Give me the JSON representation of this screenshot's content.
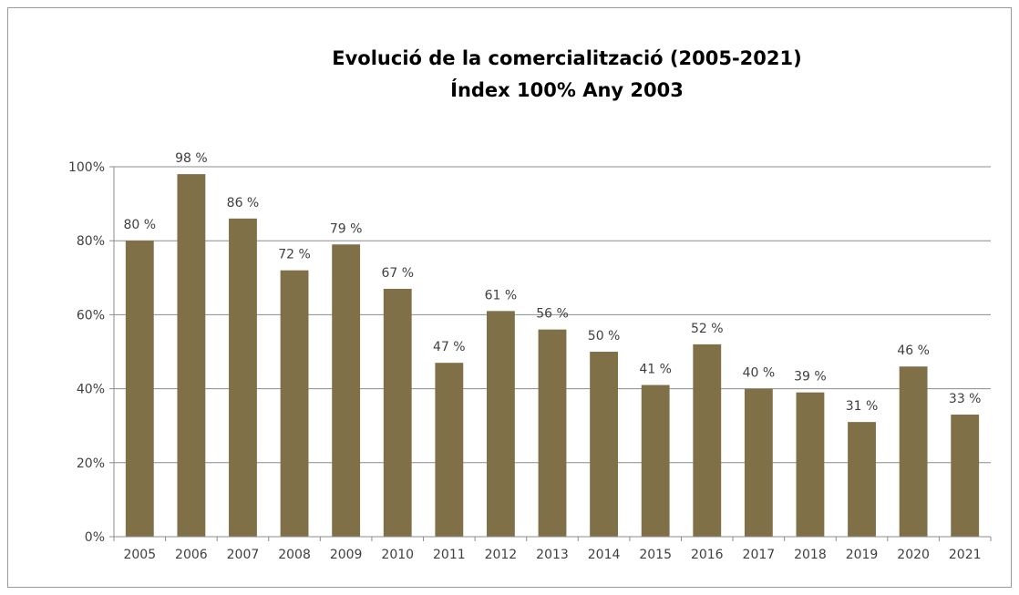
{
  "chart_data": {
    "type": "bar",
    "title": "Evolució de la comercialització (2005-2021)",
    "subtitle": "Índex 100% Any 2003",
    "xlabel": "",
    "ylabel": "",
    "categories": [
      "2005",
      "2006",
      "2007",
      "2008",
      "2009",
      "2010",
      "2011",
      "2012",
      "2013",
      "2014",
      "2015",
      "2016",
      "2017",
      "2018",
      "2019",
      "2020",
      "2021"
    ],
    "values": [
      80,
      98,
      86,
      72,
      79,
      67,
      47,
      61,
      56,
      50,
      41,
      52,
      40,
      39,
      31,
      46,
      33
    ],
    "data_labels": [
      "80 %",
      "98 %",
      "86 %",
      "72 %",
      "79 %",
      "67 %",
      "47 %",
      "61 %",
      "56 %",
      "50 %",
      "41 %",
      "52 %",
      "40 %",
      "39 %",
      "31 %",
      "46 %",
      "33 %"
    ],
    "ylim": [
      0,
      100
    ],
    "yticks": [
      0,
      20,
      40,
      60,
      80,
      100
    ],
    "ytick_labels": [
      "0%",
      "20%",
      "40%",
      "60%",
      "80%",
      "100%"
    ],
    "grid": true,
    "legend": "none",
    "bar_color": "#7f7048",
    "grid_color": "#8c8c8c",
    "axis_color": "#8c8c8c"
  }
}
